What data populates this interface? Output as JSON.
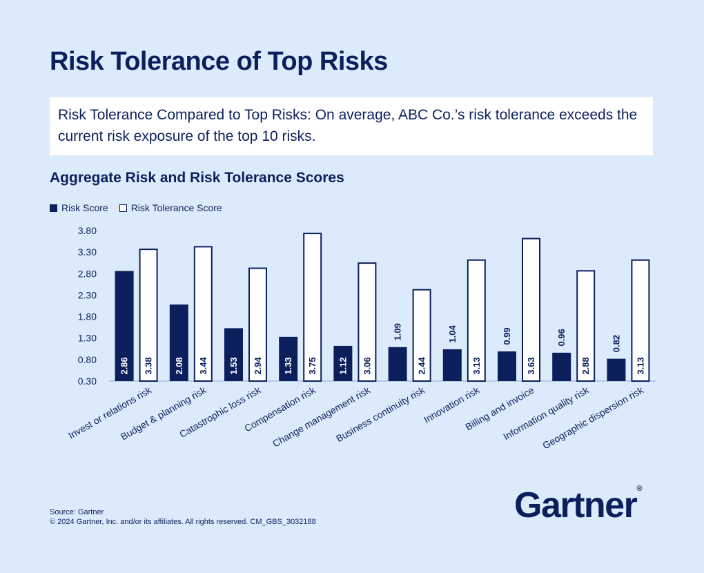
{
  "title": "Risk Tolerance of Top Risks",
  "summary": "Risk Tolerance Compared to Top Risks: On average, ABC Co.’s risk tolerance exceeds the current risk exposure of the top 10 risks.",
  "source": "Source: Gartner",
  "copyright": "© 2024 Gartner, Inc. and/or its affiliates. All rights reserved. CM_GBS_3032188",
  "logo": "Gartner",
  "logo_mark": "®",
  "colors": {
    "background": "#dcebfb",
    "navy": "#0b1f5c",
    "white": "#ffffff"
  },
  "chart_data": {
    "type": "bar",
    "title": "Aggregate Risk and Risk Tolerance Scores",
    "categories": [
      "Invest or relations risk",
      "Budget & planning risk",
      "Catastrophic loss risk",
      "Compensation risk",
      "Change management risk",
      "Business continuity risk",
      "Innovation risk",
      "Billing and invoice",
      "Information quality risk",
      "Geographic dispersion risk"
    ],
    "series": [
      {
        "name": "Risk Score",
        "style": "filled",
        "values": [
          2.86,
          2.08,
          1.53,
          1.33,
          1.12,
          1.09,
          1.04,
          0.99,
          0.96,
          0.82
        ]
      },
      {
        "name": "Risk Tolerance Score",
        "style": "outline",
        "values": [
          3.38,
          3.44,
          2.94,
          3.75,
          3.06,
          2.44,
          3.13,
          3.63,
          2.88,
          3.13
        ]
      }
    ],
    "value_labels": [
      [
        "2.86",
        "2.08",
        "1.53",
        "1.33",
        "1.12",
        "1.09",
        "1.04",
        "0.99",
        "0.96",
        "0.82"
      ],
      [
        "3.38",
        "3.44",
        "2.94",
        "3.75",
        "3.06",
        "2.44",
        "3.13",
        "3.63",
        "2.88",
        "3.13"
      ]
    ],
    "y_ticks": [
      "3.80",
      "3.30",
      "2.80",
      "2.30",
      "1.80",
      "1.30",
      "0.80",
      "0.30"
    ],
    "ylim": [
      0.3,
      3.8
    ],
    "xlabel": "",
    "ylabel": "",
    "legend": "top-left",
    "grid": false
  }
}
